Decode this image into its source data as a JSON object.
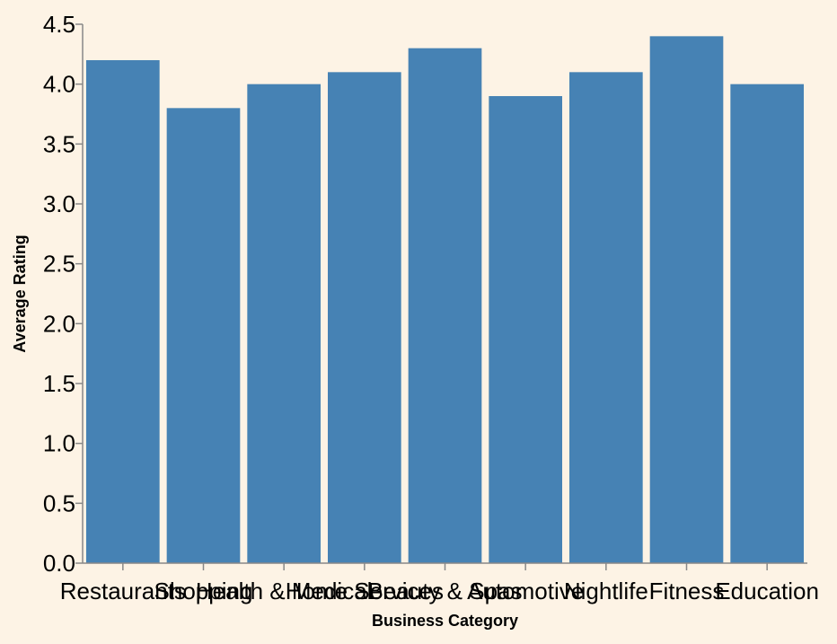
{
  "colors": {
    "background": "#fdf3e5",
    "bar": "#4682b4",
    "axis": "#888888"
  },
  "chart_data": {
    "type": "bar",
    "title": "",
    "xlabel": "Business Category",
    "ylabel": "Average Rating",
    "categories": [
      "Restaurants",
      "Shopping",
      "Health & Medical",
      "Home Services",
      "Beauty & Spas",
      "Automotive",
      "Nightlife",
      "Fitness",
      "Education"
    ],
    "values": [
      4.2,
      3.8,
      4.0,
      4.1,
      4.3,
      3.9,
      4.1,
      4.4,
      4.0
    ],
    "ylim": [
      0,
      4.5
    ],
    "yticks": [
      "0.0",
      "0.5",
      "1.0",
      "1.5",
      "2.0",
      "2.5",
      "3.0",
      "3.5",
      "4.0",
      "4.5"
    ],
    "grid": false,
    "legend": "none"
  }
}
